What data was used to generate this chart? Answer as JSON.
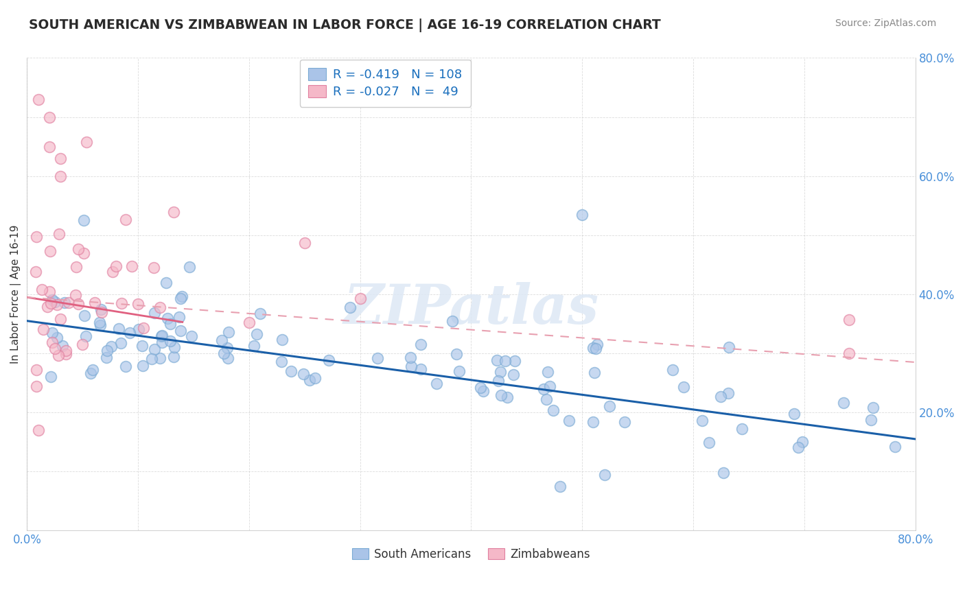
{
  "title": "SOUTH AMERICAN VS ZIMBABWEAN IN LABOR FORCE | AGE 16-19 CORRELATION CHART",
  "source": "Source: ZipAtlas.com",
  "ylabel": "In Labor Force | Age 16-19",
  "xlim": [
    0.0,
    0.8
  ],
  "ylim": [
    0.0,
    0.8
  ],
  "south_americans_color": "#aac4e8",
  "south_americans_edge": "#7aaad4",
  "zimbabweans_color": "#f5b8c8",
  "zimbabweans_edge": "#e080a0",
  "trend_sa_color": "#1a5fa8",
  "trend_zim_solid_color": "#e06080",
  "trend_zim_dash_color": "#e8a0b0",
  "background_color": "#ffffff",
  "grid_color": "#cccccc",
  "R_sa": -0.419,
  "N_sa": 108,
  "R_zim": -0.027,
  "N_zim": 49,
  "watermark": "ZIPatlas",
  "title_color": "#2a2a2a",
  "source_color": "#888888",
  "legend_R_color": "#1a6fbd",
  "axis_label_color": "#4a90d9",
  "ylabel_color": "#333333"
}
